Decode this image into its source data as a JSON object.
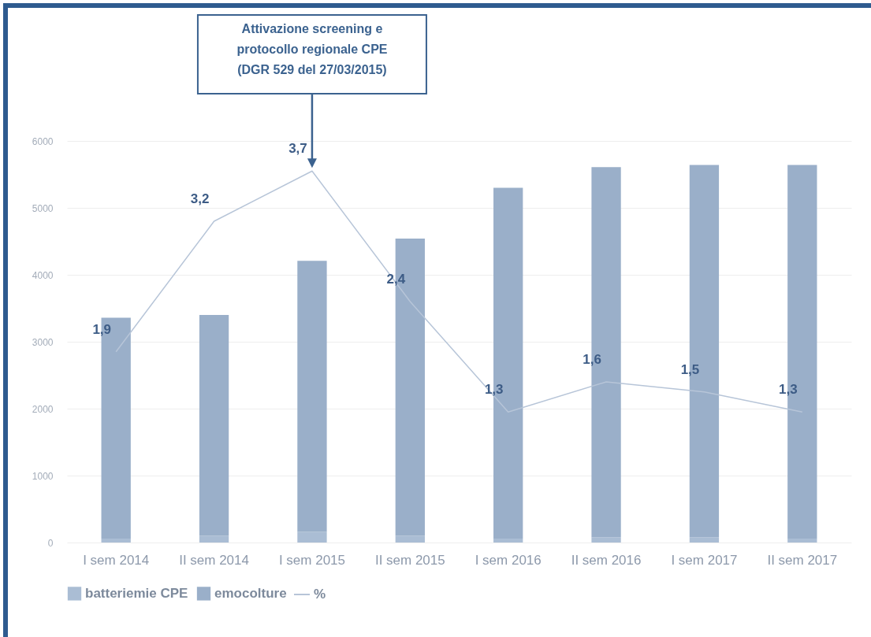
{
  "chart_data": {
    "type": "bar",
    "stacked": true,
    "categories": [
      "I sem 2014",
      "II sem 2014",
      "I sem 2015",
      "II sem 2015",
      "I sem 2016",
      "II sem 2016",
      "I sem 2017",
      "II sem 2017"
    ],
    "series": [
      {
        "name": "batteriemie CPE",
        "color": "#aabdd4",
        "values": [
          60,
          100,
          160,
          100,
          60,
          80,
          80,
          60
        ]
      },
      {
        "name": "emocolture",
        "color": "#9aafc9",
        "values": [
          3300,
          3300,
          4050,
          4440,
          5240,
          5530,
          5560,
          5580
        ]
      },
      {
        "name": "%",
        "type": "line",
        "axis": "y2",
        "color": "#b7c5d8",
        "values": [
          1.9,
          3.2,
          3.7,
          2.4,
          1.3,
          1.6,
          1.5,
          1.3
        ],
        "value_labels": [
          "1,9",
          "3,2",
          "3,7",
          "2,4",
          "1,3",
          "1,6",
          "1,5",
          "1,3"
        ]
      }
    ],
    "ylim": [
      0,
      6000
    ],
    "yticks": [
      0,
      1000,
      2000,
      3000,
      4000,
      5000,
      6000
    ],
    "y2lim": [
      0,
      4
    ],
    "grid": "y",
    "legend": "bottom",
    "annotations": [
      "Attivazione screening e protocollo regionale CPE (DGR 529 del 27/03/2015)"
    ]
  }
}
